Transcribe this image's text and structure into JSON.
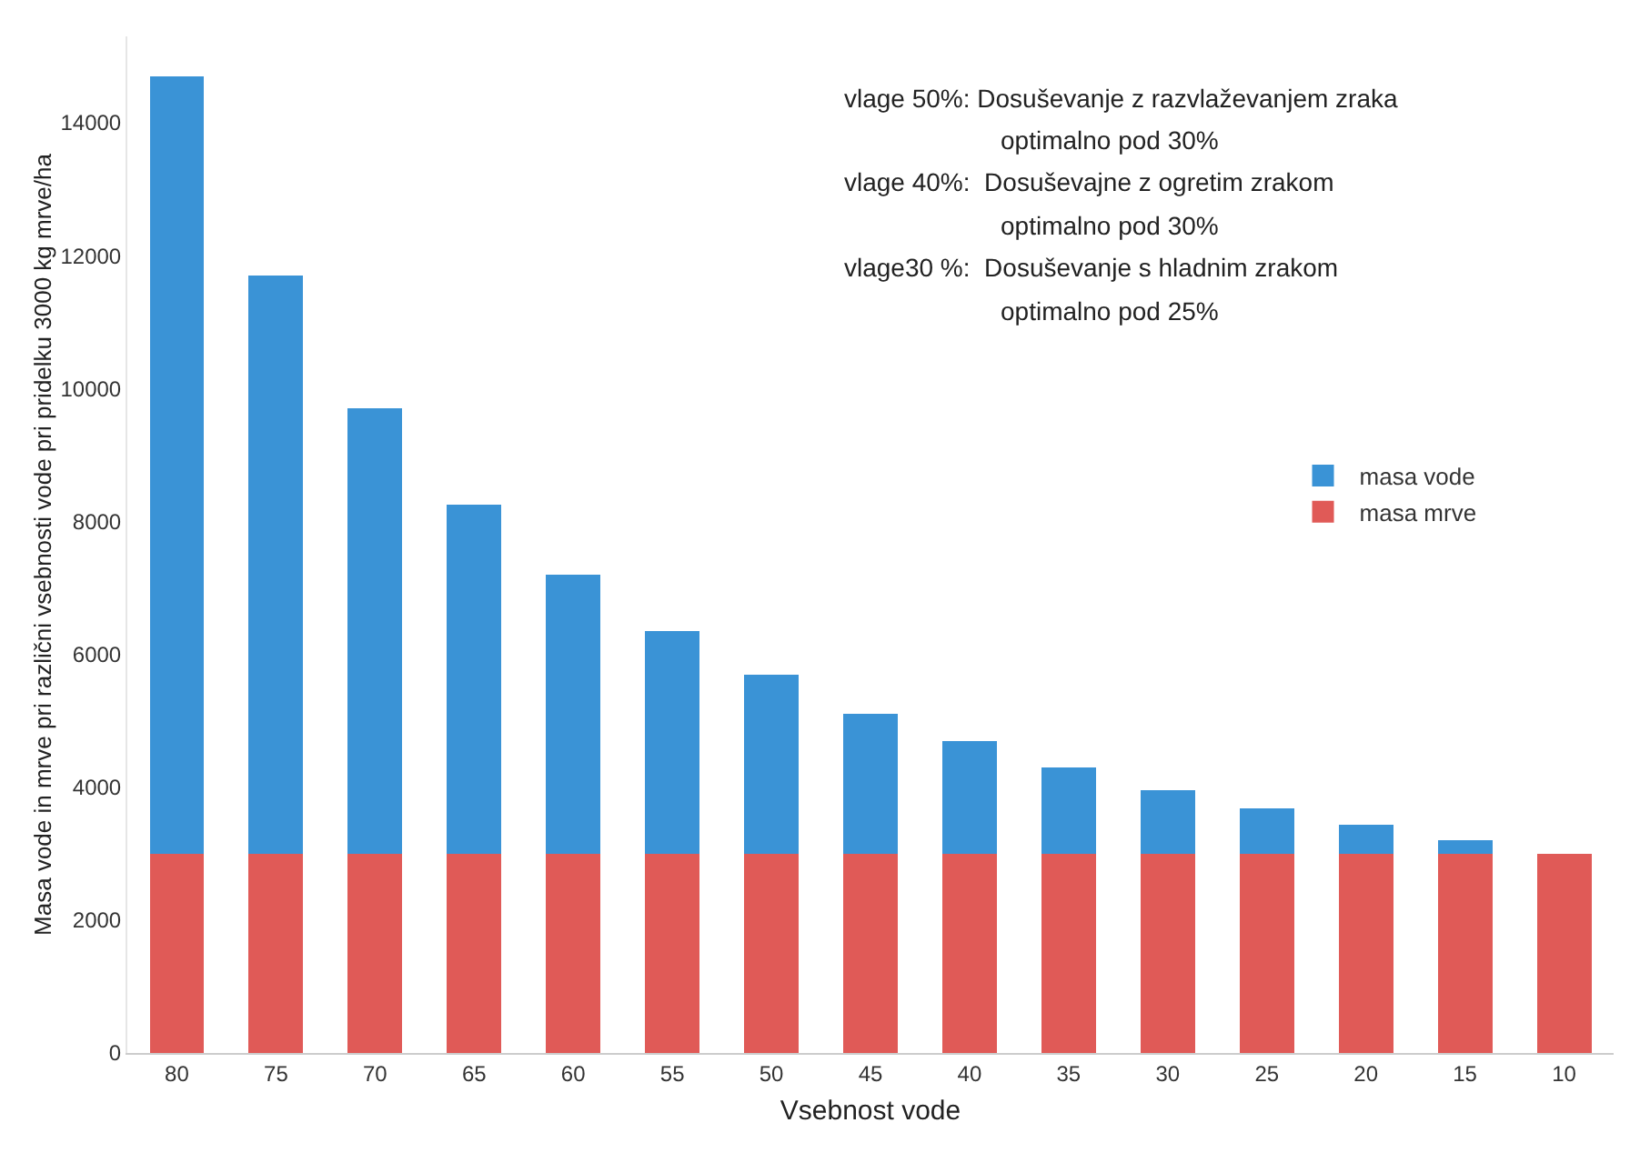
{
  "chart_data": {
    "type": "bar",
    "stacked": true,
    "xlabel": "Vsebnost vode",
    "ylabel": "Masa vode in mrve pri različni vsebnosti vode pri pridelku 3000 kg mrve/ha",
    "categories": [
      "80",
      "75",
      "70",
      "65",
      "60",
      "55",
      "50",
      "45",
      "40",
      "35",
      "30",
      "25",
      "20",
      "15",
      "10"
    ],
    "series": [
      {
        "name": "masa mrve",
        "color": "#e05a57",
        "values": [
          3000,
          3000,
          3000,
          3000,
          3000,
          3000,
          3000,
          3000,
          3000,
          3000,
          3000,
          3000,
          3000,
          3000,
          3000
        ]
      },
      {
        "name": "masa vode",
        "color": "#3a93d6",
        "values": [
          11700,
          8700,
          6700,
          5250,
          4200,
          3350,
          2700,
          2100,
          1700,
          1300,
          950,
          680,
          430,
          200,
          0
        ]
      }
    ],
    "ylim": [
      0,
      15300
    ],
    "yticks": [
      0,
      2000,
      4000,
      6000,
      8000,
      10000,
      12000,
      14000
    ],
    "grid": false,
    "legend": "right",
    "annotations": [
      "vlage 50%: Dosuševanje z razvlaževanjem zraka",
      "optimalno pod 30%",
      "vlage 40%:  Dosuševajne z ogretim zrakom",
      "optimalno pod 30%",
      "vlage30 %:  Dosuševanje s hladnim zrakom",
      "optimalno pod 25%"
    ]
  }
}
